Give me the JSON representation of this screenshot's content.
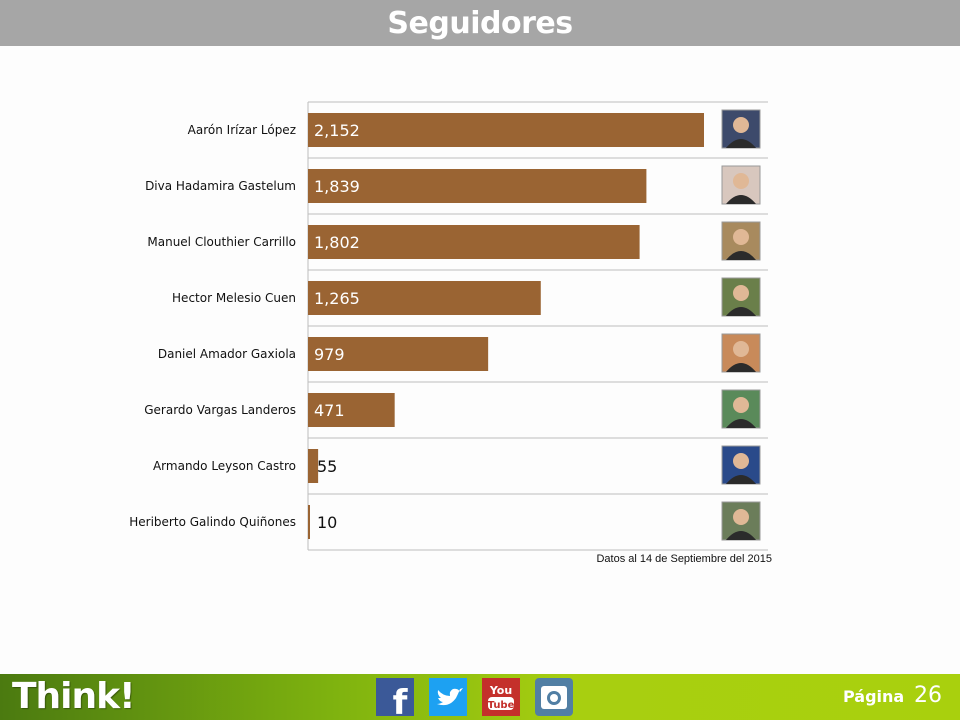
{
  "header": {
    "title": "Seguidores"
  },
  "note": "Datos al 14  de Septiembre del 2015",
  "footer": {
    "brand": "Think!",
    "page_label": "Página",
    "page_number": "26",
    "social": [
      {
        "name": "facebook-icon",
        "color": "#3b5998"
      },
      {
        "name": "twitter-icon",
        "color": "#1da1f2"
      },
      {
        "name": "youtube-icon",
        "color": "#c4302b",
        "text_top": "You",
        "text_bottom": "Tube"
      },
      {
        "name": "instagram-icon",
        "color": "#517fa4"
      }
    ]
  },
  "chart_data": {
    "type": "bar",
    "orientation": "horizontal",
    "bar_color": "#9a6433",
    "xlim": [
      0,
      2350
    ],
    "categories": [
      "Aarón Irízar López",
      "Diva Hadamira Gastelum",
      "Manuel Clouthier Carrillo",
      "Hector Melesio Cuen",
      "Daniel Amador Gaxiola",
      "Gerardo Vargas Landeros",
      "Armando Leyson Castro",
      "Heriberto Galindo Quiñones"
    ],
    "values": [
      2152,
      1839,
      1802,
      1265,
      979,
      471,
      55,
      10
    ],
    "value_labels": [
      "2,152",
      "1,839",
      "1,802",
      "1,265",
      "979",
      "471",
      "55",
      "10"
    ],
    "photo_colors": [
      "#3d4a6b",
      "#d8c7be",
      "#a88a5e",
      "#6a7f4a",
      "#c88a5a",
      "#5a8a5a",
      "#2a4a8a",
      "#6b7d5a"
    ]
  }
}
